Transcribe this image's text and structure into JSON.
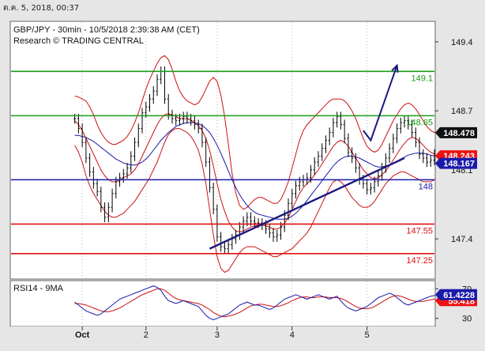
{
  "timestamp": "ต.ค. 5, 2018, 00:37",
  "chart_data": {
    "type": "line",
    "title": "GBP/JPY - 30min - 10/5/2018 2:39:38 AM (CET)",
    "subtitle": "Research © TRADING CENTRAL",
    "x_labels": [
      {
        "label": "Oct",
        "x": 2
      },
      {
        "label": "2",
        "x": 19
      },
      {
        "label": "3",
        "x": 38
      },
      {
        "label": "4",
        "x": 58
      },
      {
        "label": "5",
        "x": 78
      }
    ],
    "xlim": [
      -17,
      96
    ],
    "price_panel": {
      "ylim": [
        147.0,
        149.6
      ],
      "ticks": [
        149.4,
        148.7,
        147.4
      ],
      "current_price": "148.478",
      "ma_short_value": "148.243",
      "ma_long_value": "148.167",
      "partial_tick_label": "148.1",
      "levels": [
        {
          "label": "149.1",
          "value": 149.1,
          "color": "#1a9c1a"
        },
        {
          "label": "148.65",
          "value": 148.65,
          "color": "#1a9c1a"
        },
        {
          "label": "148",
          "value": 148.0,
          "color": "#1a1aaa"
        },
        {
          "label": "147.55",
          "value": 147.55,
          "color": "#dd1111"
        },
        {
          "label": "147.25",
          "value": 147.25,
          "color": "#dd1111"
        }
      ],
      "trendline": {
        "x": [
          36,
          88
        ],
        "y": [
          147.3,
          148.22
        ],
        "color": "#1a1a80"
      },
      "projection": {
        "x": [
          77,
          79,
          86
        ],
        "y": [
          148.5,
          148.4,
          149.16
        ],
        "color": "#1a1a80"
      },
      "close": [
        148.62,
        148.52,
        148.38,
        148.22,
        148.08,
        147.96,
        147.88,
        147.72,
        147.62,
        147.72,
        147.86,
        147.98,
        148.02,
        148.06,
        148.12,
        148.24,
        148.38,
        148.52,
        148.68,
        148.74,
        148.82,
        148.9,
        149.02,
        149.1,
        148.82,
        148.66,
        148.62,
        148.6,
        148.62,
        148.64,
        148.62,
        148.6,
        148.56,
        148.52,
        148.38,
        148.18,
        147.92,
        147.7,
        147.42,
        147.32,
        147.3,
        147.34,
        147.4,
        147.44,
        147.52,
        147.58,
        147.62,
        147.58,
        147.56,
        147.56,
        147.54,
        147.5,
        147.46,
        147.42,
        147.44,
        147.52,
        147.64,
        147.76,
        147.86,
        147.94,
        147.98,
        148.0,
        148.02,
        148.1,
        148.18,
        148.24,
        148.32,
        148.4,
        148.48,
        148.58,
        148.64,
        148.56,
        148.42,
        148.28,
        148.22,
        148.12,
        148.0,
        147.96,
        147.9,
        147.92,
        147.98,
        148.04,
        148.12,
        148.22,
        148.32,
        148.42,
        148.52,
        148.58,
        148.6,
        148.56,
        148.48,
        148.38,
        148.26,
        148.22,
        148.18,
        148.2,
        148.26,
        148.32,
        148.36,
        148.4,
        148.42,
        148.44,
        148.46,
        148.47,
        148.48,
        148.49,
        148.48,
        148.47,
        148.48,
        148.48,
        148.48,
        148.48,
        148.48
      ],
      "ma_short": [
        148.6,
        148.56,
        148.5,
        148.42,
        148.34,
        148.26,
        148.18,
        148.1,
        148.04,
        148.0,
        147.98,
        147.98,
        148.0,
        148.02,
        148.04,
        148.06,
        148.1,
        148.16,
        148.24,
        148.32,
        148.4,
        148.48,
        148.56,
        148.62,
        148.66,
        148.67,
        148.66,
        148.64,
        148.62,
        148.62,
        148.62,
        148.6,
        148.58,
        148.55,
        148.5,
        148.42,
        148.3,
        148.14,
        147.96,
        147.8,
        147.68,
        147.58,
        147.52,
        147.48,
        147.47,
        147.48,
        147.5,
        147.52,
        147.53,
        147.54,
        147.54,
        147.53,
        147.52,
        147.5,
        147.5,
        147.52,
        147.56,
        147.62,
        147.7,
        147.78,
        147.86,
        147.92,
        147.96,
        148.0,
        148.05,
        148.1,
        148.16,
        148.22,
        148.28,
        148.34,
        148.38,
        148.4,
        148.38,
        148.34,
        148.28,
        148.22,
        148.16,
        148.1,
        148.06,
        148.02,
        148.01,
        148.02,
        148.05,
        148.09,
        148.14,
        148.2,
        148.26,
        148.32,
        148.37,
        148.41,
        148.43,
        148.42,
        148.39,
        148.35,
        148.31,
        148.28,
        148.26,
        148.26,
        148.27,
        148.28,
        148.3,
        148.32,
        148.33,
        148.35,
        148.36,
        148.37,
        148.38,
        148.38,
        148.39,
        148.39,
        148.4,
        148.4,
        148.4
      ],
      "ma_long": [
        148.45,
        148.45,
        148.44,
        148.43,
        148.41,
        148.39,
        148.36,
        148.33,
        148.3,
        148.27,
        148.24,
        148.21,
        148.19,
        148.17,
        148.16,
        148.15,
        148.15,
        148.16,
        148.18,
        148.21,
        148.25,
        148.3,
        148.35,
        148.4,
        148.44,
        148.48,
        148.51,
        148.54,
        148.56,
        148.57,
        148.58,
        148.58,
        148.58,
        148.57,
        148.55,
        148.52,
        148.48,
        148.42,
        148.35,
        148.27,
        148.18,
        148.09,
        148.0,
        147.92,
        147.85,
        147.79,
        147.74,
        147.7,
        147.67,
        147.65,
        147.64,
        147.63,
        147.62,
        147.61,
        147.6,
        147.6,
        147.6,
        147.61,
        147.63,
        147.66,
        147.7,
        147.74,
        147.79,
        147.84,
        147.89,
        147.94,
        147.99,
        148.04,
        148.09,
        148.14,
        148.18,
        148.21,
        148.23,
        148.24,
        148.24,
        148.23,
        148.22,
        148.2,
        148.18,
        148.16,
        148.14,
        148.13,
        148.13,
        148.14,
        148.15,
        148.17,
        148.19,
        148.21,
        148.23,
        148.25,
        148.26,
        148.27,
        148.27,
        148.27,
        148.26,
        148.25,
        148.24,
        148.23,
        148.22,
        148.21,
        148.2,
        148.2,
        148.19,
        148.19,
        148.18,
        148.18,
        148.17,
        148.17,
        148.17,
        148.17,
        148.17,
        148.17,
        148.17
      ],
      "bb_upper": [
        148.85,
        148.84,
        148.82,
        148.8,
        148.74,
        148.66,
        148.56,
        148.48,
        148.42,
        148.38,
        148.36,
        148.36,
        148.38,
        148.4,
        148.44,
        148.5,
        148.58,
        148.68,
        148.8,
        148.92,
        149.02,
        149.1,
        149.18,
        149.24,
        149.26,
        149.22,
        149.12,
        149.0,
        148.9,
        148.84,
        148.8,
        148.78,
        148.76,
        148.78,
        148.84,
        148.92,
        149.0,
        149.04,
        149.0,
        148.86,
        148.64,
        148.36,
        148.06,
        147.86,
        147.74,
        147.7,
        147.72,
        147.76,
        147.8,
        147.82,
        147.82,
        147.8,
        147.78,
        147.76,
        147.76,
        147.8,
        147.88,
        147.98,
        148.12,
        148.26,
        148.4,
        148.5,
        148.56,
        148.6,
        148.64,
        148.68,
        148.72,
        148.76,
        148.8,
        148.82,
        148.82,
        148.82,
        148.8,
        148.76,
        148.7,
        148.62,
        148.52,
        148.42,
        148.34,
        148.3,
        148.28,
        148.3,
        148.36,
        148.44,
        148.52,
        148.6,
        148.66,
        148.72,
        148.76,
        148.78,
        148.76,
        148.72,
        148.66,
        148.6,
        148.54,
        148.5,
        148.48,
        148.48,
        148.5,
        148.52,
        148.54,
        148.56,
        148.57,
        148.58,
        148.59,
        148.6,
        148.6,
        148.6,
        148.6,
        148.6,
        148.6,
        148.6,
        148.6
      ],
      "bb_lower": [
        148.35,
        148.28,
        148.18,
        148.04,
        147.94,
        147.86,
        147.8,
        147.74,
        147.68,
        147.64,
        147.62,
        147.62,
        147.64,
        147.66,
        147.7,
        147.74,
        147.78,
        147.84,
        147.9,
        147.96,
        148.02,
        148.1,
        148.18,
        148.28,
        148.38,
        148.46,
        148.5,
        148.52,
        148.52,
        148.5,
        148.48,
        148.44,
        148.38,
        148.3,
        148.16,
        147.96,
        147.7,
        147.44,
        147.22,
        147.1,
        147.06,
        147.08,
        147.14,
        147.2,
        147.26,
        147.3,
        147.32,
        147.32,
        147.32,
        147.3,
        147.28,
        147.26,
        147.24,
        147.22,
        147.22,
        147.24,
        147.26,
        147.28,
        147.3,
        147.34,
        147.38,
        147.42,
        147.46,
        147.52,
        147.6,
        147.68,
        147.76,
        147.84,
        147.92,
        147.98,
        148.0,
        147.98,
        147.94,
        147.88,
        147.82,
        147.78,
        147.74,
        147.72,
        147.72,
        147.74,
        147.78,
        147.84,
        147.9,
        147.96,
        148.0,
        148.04,
        148.06,
        148.08,
        148.08,
        148.06,
        148.04,
        148.02,
        148.0,
        147.98,
        147.98,
        147.98,
        148.0,
        148.02,
        148.04,
        148.06,
        148.08,
        148.1,
        148.12,
        148.14,
        148.16,
        148.18,
        148.2,
        148.2,
        148.2,
        148.2,
        148.2,
        148.2,
        148.2
      ]
    },
    "rsi_panel": {
      "label": "RSI14 - 9MA",
      "ylim": [
        20,
        80
      ],
      "ticks": [
        70,
        30
      ],
      "rsi_value": "61.4228",
      "ma_value": "55.418",
      "rsi": [
        52,
        48,
        44,
        40,
        38,
        36,
        34,
        36,
        40,
        44,
        48,
        52,
        56,
        58,
        60,
        62,
        64,
        66,
        68,
        70,
        72,
        74,
        72,
        68,
        60,
        54,
        52,
        50,
        52,
        54,
        52,
        50,
        48,
        46,
        40,
        34,
        30,
        28,
        30,
        32,
        34,
        36,
        40,
        44,
        48,
        50,
        52,
        50,
        48,
        48,
        46,
        44,
        42,
        44,
        48,
        52,
        56,
        58,
        60,
        62,
        60,
        58,
        56,
        58,
        60,
        62,
        60,
        58,
        56,
        58,
        60,
        54,
        48,
        44,
        42,
        40,
        42,
        44,
        46,
        50,
        54,
        58,
        60,
        62,
        64,
        62,
        58,
        54,
        50,
        48,
        50,
        52,
        54,
        56,
        58,
        60,
        61,
        61,
        62,
        61,
        61,
        62,
        61,
        61,
        61,
        61,
        61,
        61,
        61,
        61,
        61,
        61,
        61
      ],
      "rsi_ma": [
        50,
        50,
        49,
        48,
        46,
        44,
        42,
        40,
        39,
        39,
        40,
        42,
        44,
        47,
        50,
        53,
        56,
        59,
        62,
        64,
        66,
        68,
        70,
        70,
        68,
        64,
        60,
        57,
        55,
        54,
        53,
        52,
        51,
        50,
        48,
        45,
        42,
        38,
        35,
        33,
        32,
        33,
        34,
        36,
        38,
        41,
        44,
        47,
        48,
        49,
        49,
        48,
        47,
        46,
        46,
        47,
        49,
        51,
        54,
        56,
        58,
        59,
        59,
        58,
        58,
        59,
        59,
        59,
        58,
        58,
        58,
        57,
        55,
        52,
        49,
        46,
        44,
        43,
        43,
        44,
        46,
        49,
        52,
        55,
        58,
        60,
        61,
        60,
        58,
        56,
        54,
        53,
        53,
        53,
        54,
        55,
        56,
        57,
        58,
        58,
        58,
        58,
        58,
        58,
        58,
        58,
        58,
        58,
        58,
        58,
        58,
        58,
        58
      ]
    }
  }
}
